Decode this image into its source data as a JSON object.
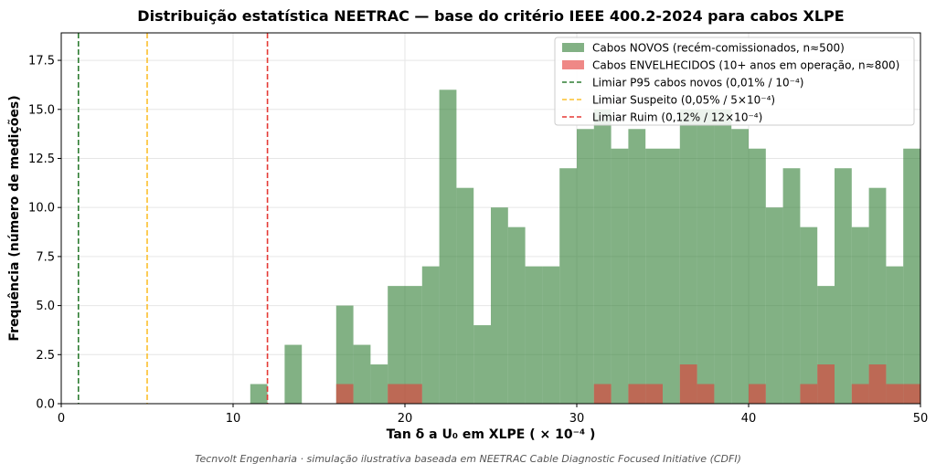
{
  "chart_data": {
    "type": "histogram",
    "title": "Distribuição estatística NEETRAC — base do critério IEEE 400.2-2024 para cabos XLPE",
    "xlabel": "Tan δ a U₀ em XLPE  ( × 10⁻⁴ )",
    "ylabel": "Frequência (número de medições)",
    "footer": "Tecnvolt Engenharia · simulação ilustrativa baseada em NEETRAC Cable Diagnostic Focused Initiative (CDFI)",
    "xlim": [
      0,
      50
    ],
    "ylim": [
      0,
      18.9
    ],
    "bin_width": 1,
    "xticks": [
      0,
      10,
      20,
      30,
      40,
      50
    ],
    "yticks": [
      0.0,
      2.5,
      5.0,
      7.5,
      10.0,
      12.5,
      15.0,
      17.5
    ],
    "ytick_labels": [
      "0.0",
      "2.5",
      "5.0",
      "7.5",
      "10.0",
      "12.5",
      "15.0",
      "17.5"
    ],
    "grid": true,
    "legend_position": "top-right",
    "series": [
      {
        "name": "Cabos NOVOS (recém-comissionados, n≈500)",
        "color": "#2e7d32",
        "opacity": 0.6,
        "bin_starts": [
          11,
          13,
          16,
          17,
          18,
          19,
          20,
          21,
          22,
          23,
          24,
          25,
          26,
          27,
          28,
          29,
          30,
          31,
          32,
          33,
          34,
          35,
          36,
          37,
          38,
          39,
          40,
          41,
          42,
          43,
          44,
          45,
          46,
          47,
          48,
          49
        ],
        "counts": [
          1,
          3,
          5,
          3,
          2,
          6,
          6,
          7,
          16,
          11,
          4,
          10,
          9,
          7,
          7,
          12,
          14,
          15,
          13,
          14,
          13,
          13,
          15,
          15,
          15,
          14,
          13,
          10,
          12,
          9,
          6,
          12,
          9,
          11,
          7,
          13
        ]
      },
      {
        "name": "Cabos ENVELHECIDOS (10+ anos em operação, n≈800)",
        "color": "#e53935",
        "opacity": 0.6,
        "bin_starts": [
          16,
          19,
          20,
          31,
          33,
          34,
          36,
          37,
          40,
          43,
          44,
          46,
          47,
          48,
          49
        ],
        "counts": [
          1,
          1,
          1,
          1,
          1,
          1,
          2,
          1,
          1,
          1,
          2,
          1,
          2,
          1,
          1
        ]
      }
    ],
    "thresholds": [
      {
        "name": "Limiar P95 cabos novos (0,01% / 10⁻⁴)",
        "x": 1,
        "color": "#2e7d32"
      },
      {
        "name": "Limiar Suspeito (0,05% / 5×10⁻⁴)",
        "x": 5,
        "color": "#fbc02d"
      },
      {
        "name": "Limiar Ruim (0,12% / 12×10⁻⁴)",
        "x": 12,
        "color": "#e53935"
      }
    ]
  }
}
